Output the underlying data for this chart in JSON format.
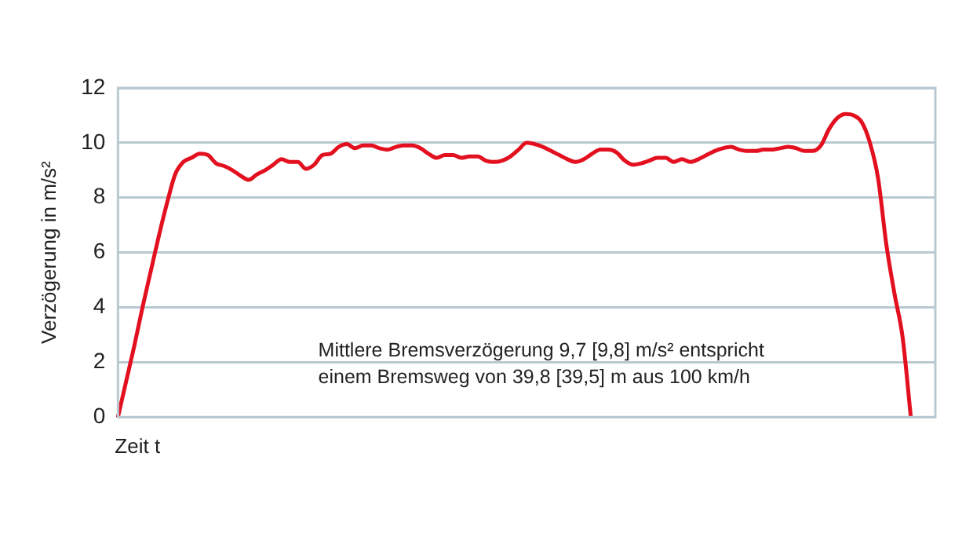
{
  "chart_data": {
    "type": "line",
    "xlabel": "Zeit t",
    "ylabel": "Verzögerung in m/s²",
    "categories": [
      null,
      null,
      null,
      null,
      null,
      null,
      null,
      null,
      null,
      null,
      null,
      null,
      null,
      null,
      null,
      null,
      null,
      null,
      null,
      null,
      null,
      null,
      null,
      null,
      null,
      null,
      null,
      null,
      null,
      null,
      null,
      null,
      null,
      null,
      null,
      null,
      null,
      null,
      null,
      null,
      null,
      null,
      null,
      null,
      null,
      null,
      null,
      null,
      null,
      null,
      null,
      null,
      null,
      null,
      null,
      null,
      null,
      null,
      null,
      null,
      null,
      null,
      null,
      null,
      null,
      null,
      null,
      null,
      null,
      null,
      null,
      null,
      null,
      null,
      null,
      null,
      null,
      null,
      null,
      null,
      null,
      null,
      null,
      null,
      null,
      null,
      null,
      null,
      null,
      null,
      null,
      null,
      null,
      null,
      null,
      null,
      null,
      null,
      null,
      null,
      null
    ],
    "series": [
      {
        "color": "#e3101f",
        "values": [
          0,
          1.3,
          2.6,
          4.0,
          5.3,
          6.6,
          7.8,
          8.85,
          9.3,
          9.45,
          9.6,
          9.55,
          9.25,
          9.15,
          9.0,
          8.8,
          8.65,
          8.85,
          9.0,
          9.2,
          9.4,
          9.3,
          9.3,
          9.05,
          9.2,
          9.55,
          9.6,
          9.85,
          9.95,
          9.8,
          9.9,
          9.9,
          9.8,
          9.75,
          9.85,
          9.9,
          9.9,
          9.8,
          9.6,
          9.45,
          9.55,
          9.55,
          9.45,
          9.5,
          9.5,
          9.35,
          9.3,
          9.35,
          9.5,
          9.75,
          10.0,
          9.95,
          9.85,
          9.7,
          9.55,
          9.4,
          9.3,
          9.4,
          9.6,
          9.75,
          9.75,
          9.65,
          9.35,
          9.2,
          9.25,
          9.35,
          9.45,
          9.45,
          9.3,
          9.4,
          9.3,
          9.4,
          9.55,
          9.7,
          9.8,
          9.85,
          9.75,
          9.7,
          9.7,
          9.75,
          9.75,
          9.8,
          9.85,
          9.8,
          9.7,
          9.7,
          9.9,
          10.5,
          10.9,
          11.05,
          11.0,
          10.75,
          10.0,
          8.7,
          6.3,
          4.5,
          2.9,
          0,
          null,
          null,
          null
        ]
      }
    ],
    "ylim": [
      0,
      12
    ],
    "yticks": [
      0,
      2,
      4,
      6,
      8,
      10,
      12
    ],
    "grid": "y",
    "legend": false,
    "marker": "none",
    "line_style": "solid",
    "annotations": [
      "Mittlere Bremsverzögerung 9,7 [9,8] m/s² entspricht",
      "einem Bremsweg von 39,8 [39,5] m aus 100 km/h"
    ]
  }
}
